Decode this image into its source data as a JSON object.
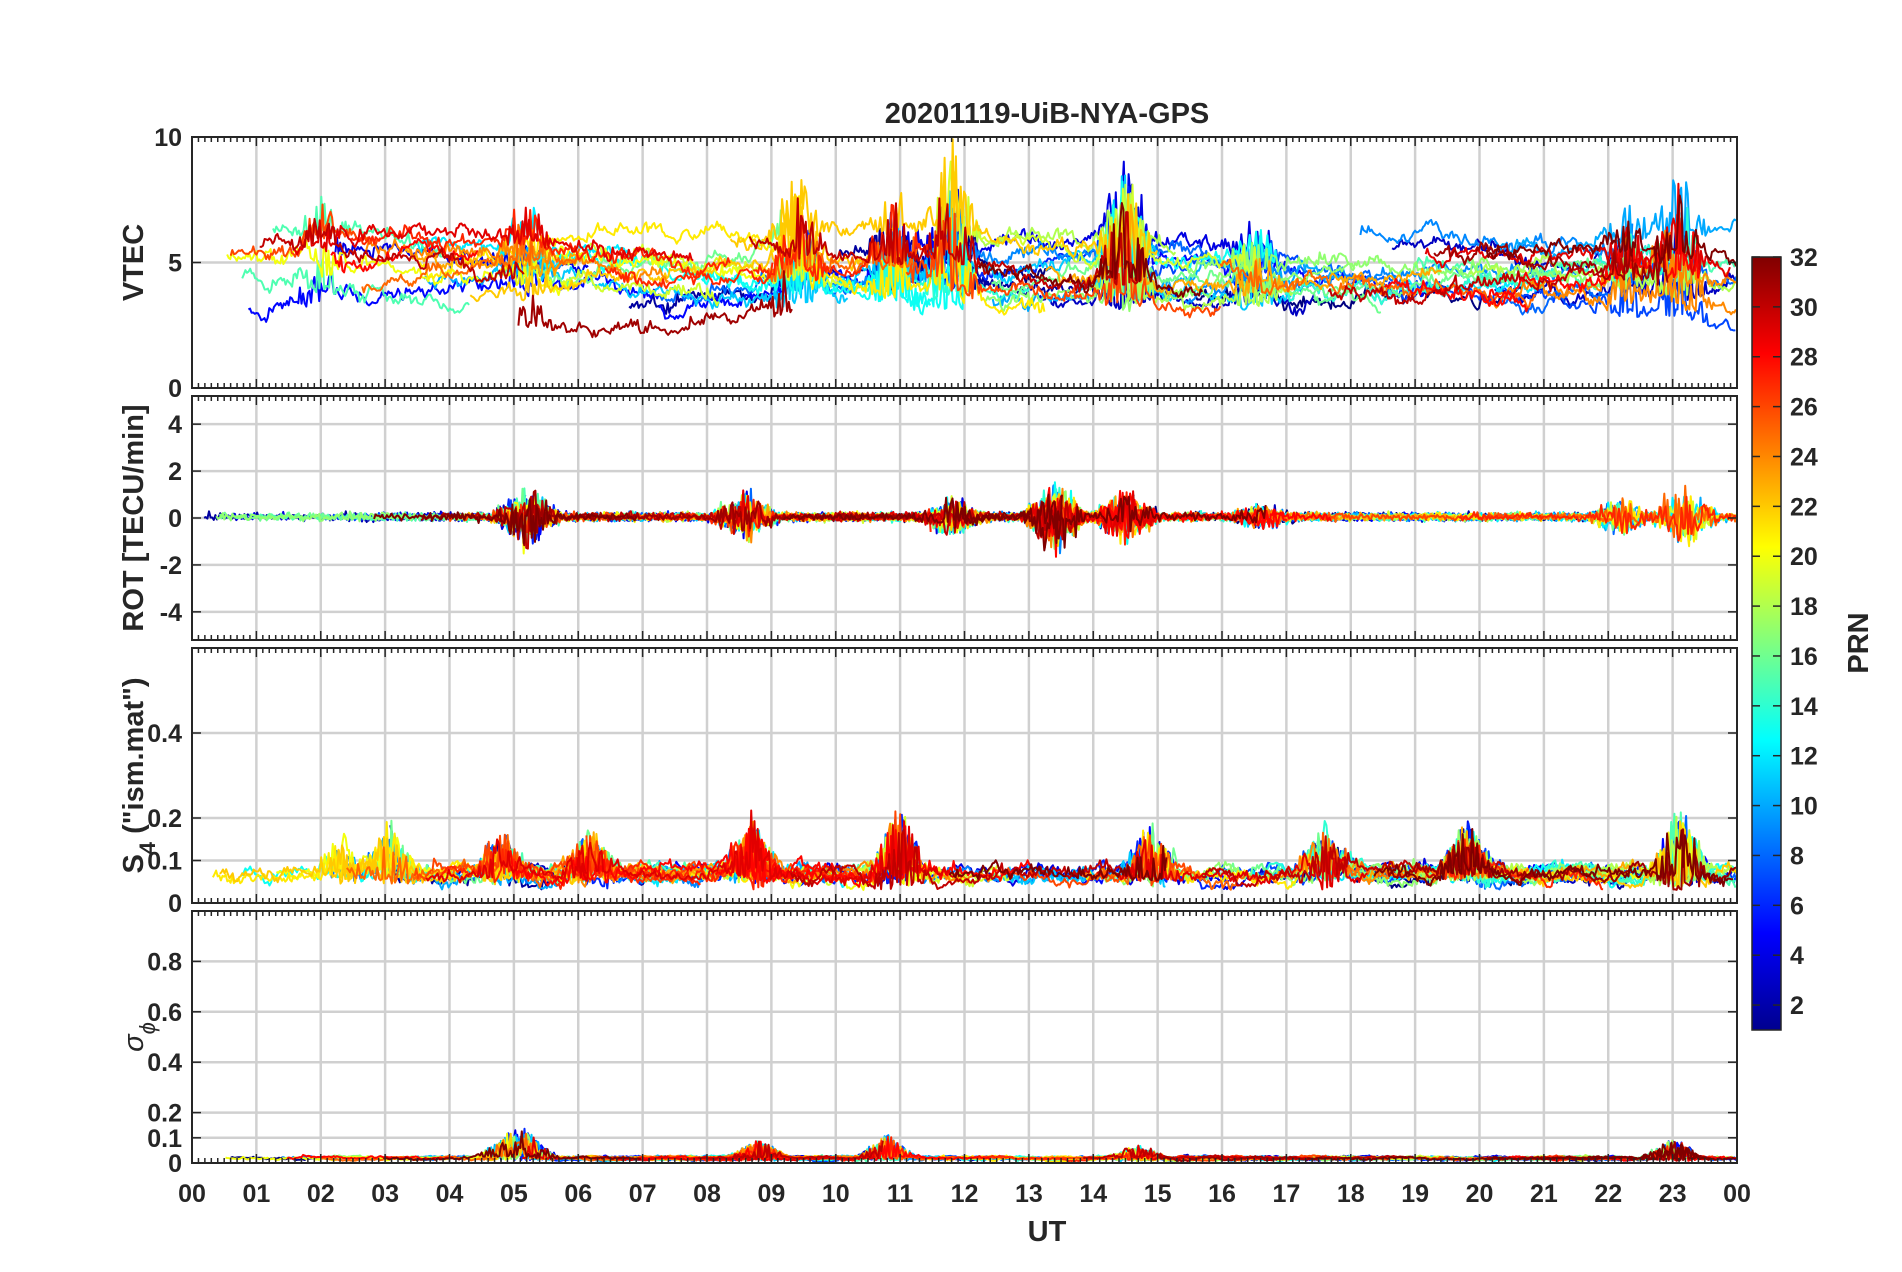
{
  "chart_data": {
    "type": "line",
    "title": "20201119-UiB-NYA-GPS",
    "xlabel": "UT",
    "x_ticks": [
      "00",
      "01",
      "02",
      "03",
      "04",
      "05",
      "06",
      "07",
      "08",
      "09",
      "10",
      "11",
      "12",
      "13",
      "14",
      "15",
      "16",
      "17",
      "18",
      "19",
      "20",
      "21",
      "22",
      "23",
      "00"
    ],
    "xlim_hours": [
      0,
      24
    ],
    "grid": true,
    "panels": [
      {
        "id": "vtec",
        "ylabel": "VTEC",
        "ylim": [
          0,
          10
        ],
        "yticks": [
          0,
          5,
          10
        ],
        "ytick_labels": [
          "0",
          "5",
          "10"
        ],
        "baseline": 4.6,
        "noise": 0.35,
        "trend_amp": 1.4,
        "events": [
          [
            2.0,
            1.4
          ],
          [
            5.2,
            1.5
          ],
          [
            9.4,
            2.8
          ],
          [
            10.9,
            2.5
          ],
          [
            11.8,
            3.6
          ],
          [
            14.5,
            3.4
          ],
          [
            16.5,
            1.4
          ],
          [
            22.3,
            1.5
          ],
          [
            23.1,
            3.0
          ]
        ],
        "floor": 1.0
      },
      {
        "id": "rot",
        "ylabel": "ROT [TECU/min]",
        "ylim": [
          -5.2,
          5.2
        ],
        "yticks": [
          -4,
          -2,
          0,
          2,
          4
        ],
        "ytick_labels": [
          "-4",
          "-2",
          "0",
          "2",
          "4"
        ],
        "baseline": 0.05,
        "noise": 0.12,
        "spike_scale": 0.8,
        "events": [
          [
            5.2,
            3.2
          ],
          [
            8.6,
            2.4
          ],
          [
            11.8,
            2.0
          ],
          [
            13.4,
            3.4
          ],
          [
            14.5,
            2.9
          ],
          [
            16.6,
            1.3
          ],
          [
            22.2,
            2.0
          ],
          [
            23.2,
            3.3
          ]
        ]
      },
      {
        "id": "s4",
        "ylabel_main": "S",
        "ylabel_sub": "4",
        "ylabel_rest": " (\"ism.mat\")",
        "ylim": [
          0,
          0.6
        ],
        "yticks": [
          0,
          0.1,
          0.2,
          0.4
        ],
        "ytick_labels": [
          "0",
          "0.1",
          "0.2",
          "0.4"
        ],
        "baseline": 0.065,
        "noise": 0.018,
        "floor": 0.03,
        "events": [
          [
            2.3,
            0.08
          ],
          [
            3.1,
            0.12
          ],
          [
            4.8,
            0.09
          ],
          [
            6.2,
            0.1
          ],
          [
            8.7,
            0.13
          ],
          [
            11.0,
            0.16
          ],
          [
            14.9,
            0.12
          ],
          [
            17.6,
            0.1
          ],
          [
            19.8,
            0.11
          ],
          [
            23.1,
            0.16
          ]
        ]
      },
      {
        "id": "sigma",
        "ylabel_main": "σ",
        "ylabel_sub": "ϕ",
        "ylim": [
          0,
          1
        ],
        "yticks": [
          0,
          0.1,
          0.2,
          0.4,
          0.6,
          0.8
        ],
        "ytick_labels": [
          "0",
          "0.1",
          "0.2",
          "0.4",
          "0.6",
          "0.8"
        ],
        "baseline": 0.018,
        "noise": 0.006,
        "floor": 0.0,
        "events": [
          [
            4.9,
            0.09
          ],
          [
            5.2,
            0.1
          ],
          [
            8.8,
            0.07
          ],
          [
            10.8,
            0.09
          ],
          [
            14.7,
            0.05
          ],
          [
            23.0,
            0.08
          ]
        ]
      }
    ],
    "series_count": 32,
    "colorbar": {
      "label": "PRN",
      "range": [
        1,
        32
      ],
      "ticks": [
        2,
        4,
        6,
        8,
        10,
        12,
        14,
        16,
        18,
        20,
        22,
        24,
        26,
        28,
        30,
        32
      ],
      "tick_labels": [
        "2",
        "4",
        "6",
        "8",
        "10",
        "12",
        "14",
        "16",
        "18",
        "20",
        "22",
        "24",
        "26",
        "28",
        "30",
        "32"
      ],
      "colormap": "jet"
    },
    "colors": {
      "axis": "#262626",
      "grid": "#d0d0d0"
    }
  }
}
